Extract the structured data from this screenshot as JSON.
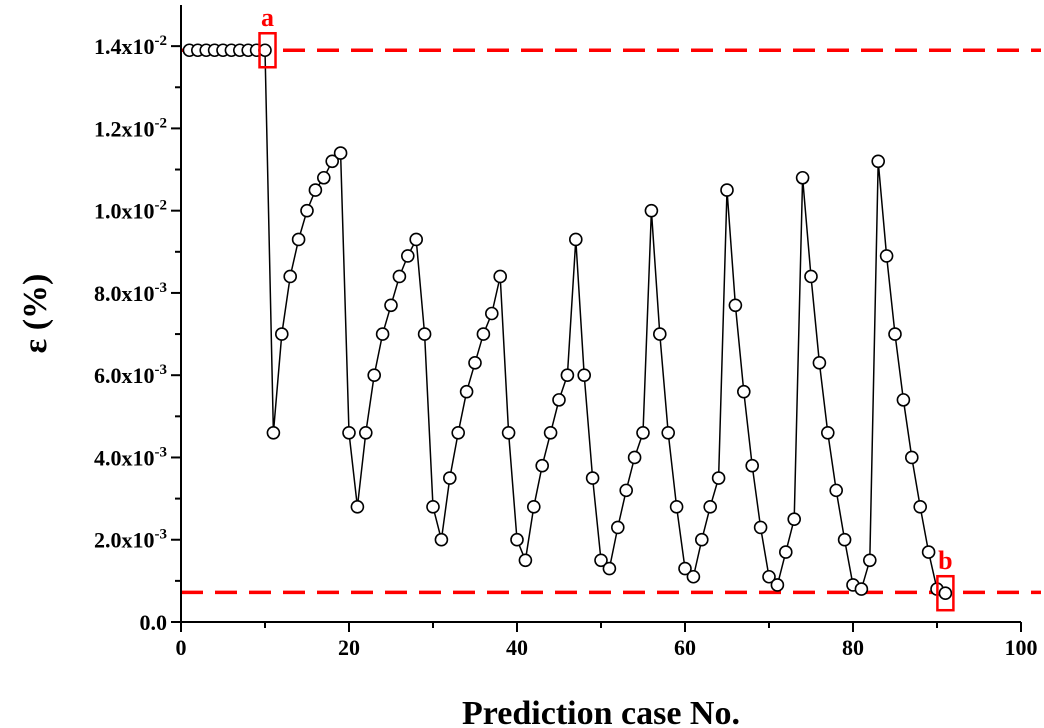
{
  "chart_data": {
    "type": "line",
    "xlabel": "Prediction case No.",
    "ylabel": "ε (%)",
    "xlim": [
      0,
      100
    ],
    "ylim": [
      0,
      0.015
    ],
    "x_ticks": [
      0,
      20,
      40,
      60,
      80,
      100
    ],
    "y_ticks": [
      {
        "value": 0.0,
        "mantissa": "0.0",
        "exp": ""
      },
      {
        "value": 0.002,
        "mantissa": "2.0x10",
        "exp": "-3"
      },
      {
        "value": 0.004,
        "mantissa": "4.0x10",
        "exp": "-3"
      },
      {
        "value": 0.006,
        "mantissa": "6.0x10",
        "exp": "-3"
      },
      {
        "value": 0.008,
        "mantissa": "8.0x10",
        "exp": "-3"
      },
      {
        "value": 0.01,
        "mantissa": "1.0x10",
        "exp": "-2"
      },
      {
        "value": 0.012,
        "mantissa": "1.2x10",
        "exp": "-2"
      },
      {
        "value": 0.014,
        "mantissa": "1.4x10",
        "exp": "-2"
      }
    ],
    "series": [
      {
        "marker": "open-circle",
        "color": "#000000",
        "x": [
          1,
          2,
          3,
          4,
          5,
          6,
          7,
          8,
          9,
          10,
          11,
          12,
          13,
          14,
          15,
          16,
          17,
          18,
          19,
          20,
          21,
          22,
          23,
          24,
          25,
          26,
          27,
          28,
          29,
          30,
          31,
          32,
          33,
          34,
          35,
          36,
          37,
          38,
          39,
          40,
          41,
          42,
          43,
          44,
          45,
          46,
          47,
          48,
          49,
          50,
          51,
          52,
          53,
          54,
          55,
          56,
          57,
          58,
          59,
          60,
          61,
          62,
          63,
          64,
          65,
          66,
          67,
          68,
          69,
          70,
          71,
          72,
          73,
          74,
          75,
          76,
          77,
          78,
          79,
          80,
          81,
          82,
          83,
          84,
          85,
          86,
          87,
          88,
          89,
          90,
          91
        ],
        "y": [
          0.0139,
          0.0139,
          0.0139,
          0.0139,
          0.0139,
          0.0139,
          0.0139,
          0.0139,
          0.0139,
          0.0139,
          0.0046,
          0.007,
          0.0084,
          0.0093,
          0.01,
          0.0105,
          0.0108,
          0.0112,
          0.0114,
          0.0046,
          0.0028,
          0.0046,
          0.006,
          0.007,
          0.0077,
          0.0084,
          0.0089,
          0.0093,
          0.007,
          0.0028,
          0.002,
          0.0035,
          0.0046,
          0.0056,
          0.0063,
          0.007,
          0.0075,
          0.0084,
          0.0046,
          0.002,
          0.0015,
          0.0028,
          0.0038,
          0.0046,
          0.0054,
          0.006,
          0.0093,
          0.006,
          0.0035,
          0.0015,
          0.0013,
          0.0023,
          0.0032,
          0.004,
          0.0046,
          0.01,
          0.007,
          0.0046,
          0.0028,
          0.0013,
          0.0011,
          0.002,
          0.0028,
          0.0035,
          0.0105,
          0.0077,
          0.0056,
          0.0038,
          0.0023,
          0.0011,
          0.0009,
          0.0017,
          0.0025,
          0.0108,
          0.0084,
          0.0063,
          0.0046,
          0.0032,
          0.002,
          0.0009,
          0.0008,
          0.0015,
          0.0112,
          0.0089,
          0.007,
          0.0054,
          0.004,
          0.0028,
          0.0017,
          0.0008,
          0.0007
        ]
      }
    ],
    "reference_lines": [
      {
        "y": 0.0139,
        "color": "#ff0000",
        "style": "dashed"
      },
      {
        "y": 0.00072,
        "color": "#ff0000",
        "style": "dashed"
      }
    ],
    "annotations": [
      {
        "label": "a",
        "x": 10.3,
        "y": 0.0139,
        "color": "#ff0000"
      },
      {
        "label": "b",
        "x": 91,
        "y": 0.0007,
        "color": "#ff0000"
      }
    ]
  }
}
